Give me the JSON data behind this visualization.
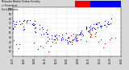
{
  "title_line1": "Milwaukee Weather Outdoor Humidity",
  "title_line2": "vs Temperature",
  "title_line3": "Every 5 Minutes",
  "background_color": "#d8d8d8",
  "plot_bg_color": "#ffffff",
  "dot_color_blue": "#0000cc",
  "dot_color_red": "#cc0000",
  "dot_size": 0.8,
  "grid_color": "#bbbbbb",
  "title_bar_red": "#ee0000",
  "title_bar_blue": "#0000ee",
  "x_tick_labels": [
    "01/25",
    "02/01",
    "02/08",
    "02/15",
    "02/22",
    "03/01",
    "03/08",
    "03/15",
    "03/22",
    "03/29",
    "04/05"
  ],
  "y_tick_labels": [
    "10",
    "20",
    "30",
    "40",
    "50",
    "60",
    "70",
    "80",
    "90",
    "100"
  ],
  "ylim": [
    0,
    105
  ],
  "xlim": [
    0,
    110
  ]
}
